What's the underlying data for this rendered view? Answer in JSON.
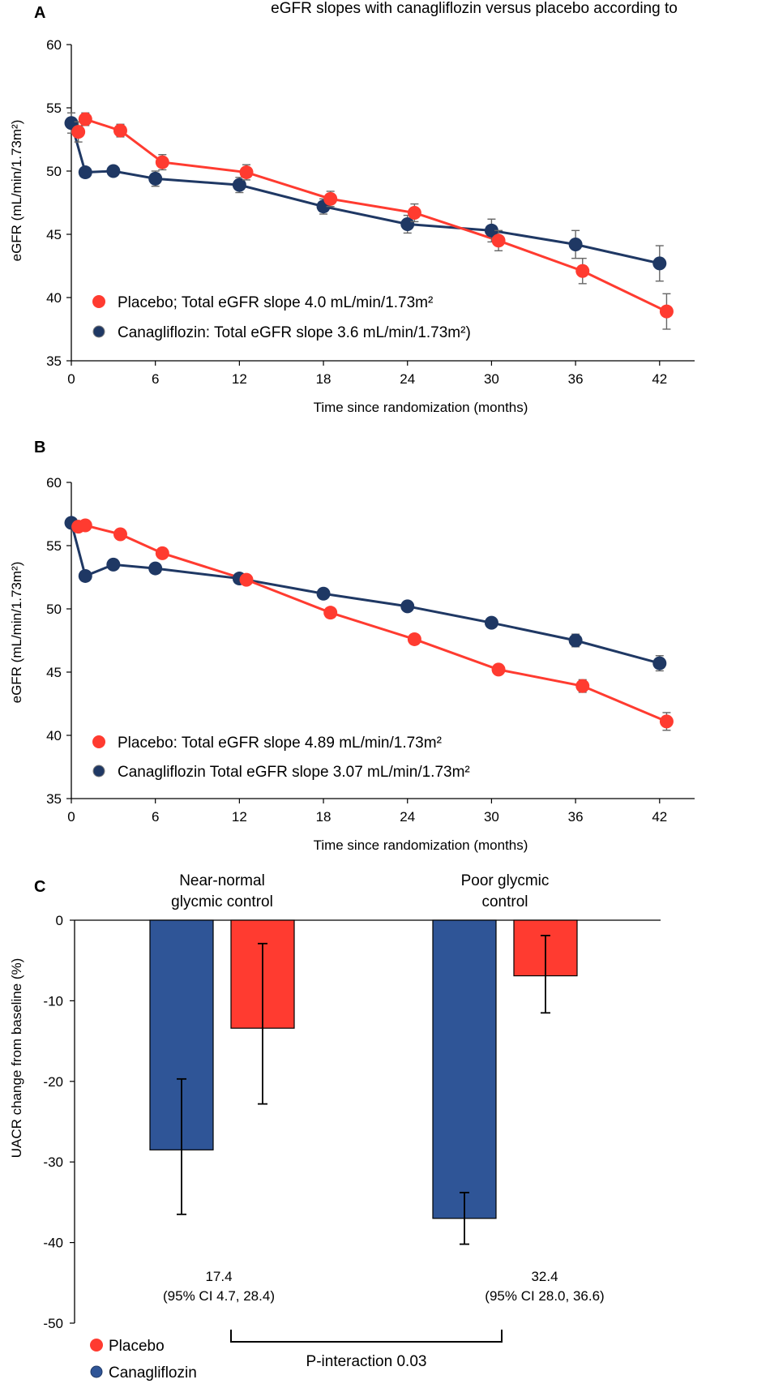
{
  "top_caption": "eGFR slopes with canagliflozin versus placebo according to",
  "chart_data": [
    {
      "panel": "A",
      "type": "line",
      "xlabel": "Time since randomization (months)",
      "ylabel": "eGFR (mL/min/1.73m²)",
      "ylim": [
        35,
        60
      ],
      "yticks": [
        35,
        40,
        45,
        50,
        55,
        60
      ],
      "xlim": [
        0,
        44.5
      ],
      "xticks": [
        0,
        6,
        12,
        18,
        24,
        30,
        36,
        42
      ],
      "series": [
        {
          "name": "Placebo",
          "legend": "Placebo; Total eGFR slope 4.0 mL/min/1.73m²",
          "color": "#ff3b30",
          "x": [
            0.5,
            1,
            3.5,
            6.5,
            12.5,
            18.5,
            24.5,
            30.5,
            36.5,
            42.5
          ],
          "y": [
            53.1,
            54.1,
            53.2,
            50.7,
            49.9,
            47.8,
            46.7,
            44.5,
            42.1,
            38.9
          ],
          "err": [
            0.8,
            0.5,
            0.5,
            0.6,
            0.6,
            0.6,
            0.7,
            0.8,
            1.0,
            1.4
          ]
        },
        {
          "name": "Canagliflozin",
          "legend": "Canagliflozin: Total eGFR slope 3.6 mL/min/1.73m²)",
          "color": "#1f3864",
          "x": [
            0,
            1,
            3,
            6,
            12,
            18,
            24,
            30,
            36,
            42
          ],
          "y": [
            53.8,
            49.9,
            50.0,
            49.4,
            48.9,
            47.2,
            45.8,
            45.3,
            44.2,
            42.7
          ],
          "err": [
            0.8,
            0.4,
            0.4,
            0.6,
            0.6,
            0.6,
            0.7,
            0.9,
            1.1,
            1.4
          ]
        }
      ]
    },
    {
      "panel": "B",
      "type": "line",
      "xlabel": "Time since randomization (months)",
      "ylabel": "eGFR (mL/min/1.73m²)",
      "ylim": [
        35,
        60
      ],
      "yticks": [
        35,
        40,
        45,
        50,
        55,
        60
      ],
      "xlim": [
        0,
        44.5
      ],
      "xticks": [
        0,
        6,
        12,
        18,
        24,
        30,
        36,
        42
      ],
      "series": [
        {
          "name": "Placebo",
          "legend": "Placebo: Total eGFR slope 4.89 mL/min/1.73m²",
          "color": "#ff3b30",
          "x": [
            0.5,
            1,
            3.5,
            6.5,
            12.5,
            18.5,
            24.5,
            30.5,
            36.5,
            42.5
          ],
          "y": [
            56.5,
            56.6,
            55.9,
            54.4,
            52.3,
            49.7,
            47.6,
            45.2,
            43.9,
            41.1
          ],
          "err": [
            0.3,
            0.3,
            0.3,
            0.3,
            0.3,
            0.3,
            0.3,
            0.3,
            0.5,
            0.7
          ]
        },
        {
          "name": "Canagliflozin",
          "legend": "Canagliflozin Total eGFR slope 3.07 mL/min/1.73m²",
          "color": "#1f3864",
          "x": [
            0,
            1,
            3,
            6,
            12,
            18,
            24,
            30,
            36,
            42
          ],
          "y": [
            56.8,
            52.6,
            53.5,
            53.2,
            52.4,
            51.2,
            50.2,
            48.9,
            47.5,
            45.7
          ],
          "err": [
            0.3,
            0.3,
            0.3,
            0.3,
            0.3,
            0.3,
            0.3,
            0.3,
            0.5,
            0.6
          ]
        }
      ]
    },
    {
      "panel": "C",
      "type": "bar",
      "ylabel": "UACR change from baseline (%)",
      "ylim": [
        -50,
        0
      ],
      "yticks": [
        0,
        -10,
        -20,
        -30,
        -40,
        -50
      ],
      "categories": [
        "Near-normal glycmic control",
        "Poor glycmic control"
      ],
      "category_lines": [
        [
          "Near-normal",
          "glycmic control"
        ],
        [
          "Poor glycmic",
          "control"
        ]
      ],
      "series": [
        {
          "name": "Canagliflozin",
          "color": "#2f5597",
          "values": [
            -28.5,
            -37.0
          ],
          "ci_low": [
            -36.5,
            -40.2
          ],
          "ci_high": [
            -19.7,
            -33.8
          ]
        },
        {
          "name": "Placebo",
          "color": "#ff3b30",
          "values": [
            -13.4,
            -6.9
          ],
          "ci_low": [
            -22.8,
            -11.5
          ],
          "ci_high": [
            -2.9,
            -1.9
          ]
        }
      ],
      "differences": [
        {
          "value": "17.4",
          "ci": "(95% CI 4.7, 28.4)"
        },
        {
          "value": "32.4",
          "ci": "(95% CI 28.0, 36.6)"
        }
      ],
      "p_interaction": "P-interaction 0.03",
      "legend": [
        "Placebo",
        "Canagliflozin"
      ]
    }
  ]
}
